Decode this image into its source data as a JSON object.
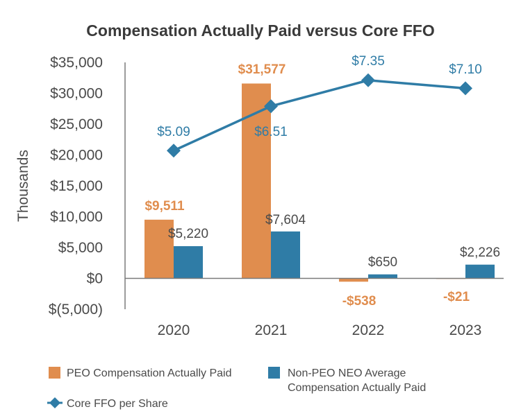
{
  "chart_data": {
    "type": "bar",
    "title": "Compensation Actually Paid versus Core FFO",
    "ylabel": "Thousands",
    "xlabel": "",
    "categories": [
      "2020",
      "2021",
      "2022",
      "2023"
    ],
    "ylim": [
      -5000,
      35000
    ],
    "yticks": [
      35000,
      30000,
      25000,
      20000,
      15000,
      10000,
      5000,
      0,
      -5000
    ],
    "ytick_labels": [
      "$35,000",
      "$30,000",
      "$25,000",
      "$20,000",
      "$15,000",
      "$10,000",
      "$5,000",
      "$0",
      "$(5,000)"
    ],
    "series": [
      {
        "name": "PEO Compensation Actually Paid",
        "type": "bar",
        "color": "#e08d4e",
        "values": [
          9511,
          31577,
          -538,
          -21
        ],
        "labels": [
          "$9,511",
          "$31,577",
          "-$538",
          "-$21"
        ]
      },
      {
        "name": "Non-PEO NEO Average Compensation Actually Paid",
        "legend_lines": [
          "Non-PEO NEO Average",
          "Compensation Actually Paid"
        ],
        "type": "bar",
        "color": "#2f7ca6",
        "values": [
          5220,
          7604,
          650,
          2226
        ],
        "labels": [
          "$5,220",
          "$7,604",
          "$650",
          "$2,226"
        ]
      },
      {
        "name": "Core FFO per Share",
        "type": "line",
        "marker": "diamond",
        "color": "#2f7ca6",
        "values": [
          5.09,
          6.51,
          7.35,
          7.1
        ],
        "labels": [
          "$5.09",
          "$6.51",
          "$7.35",
          "$7.10"
        ],
        "plotted_at": [
          20700,
          27900,
          32100,
          30800
        ]
      }
    ],
    "legend_position": "bottom-left",
    "grid": false
  }
}
